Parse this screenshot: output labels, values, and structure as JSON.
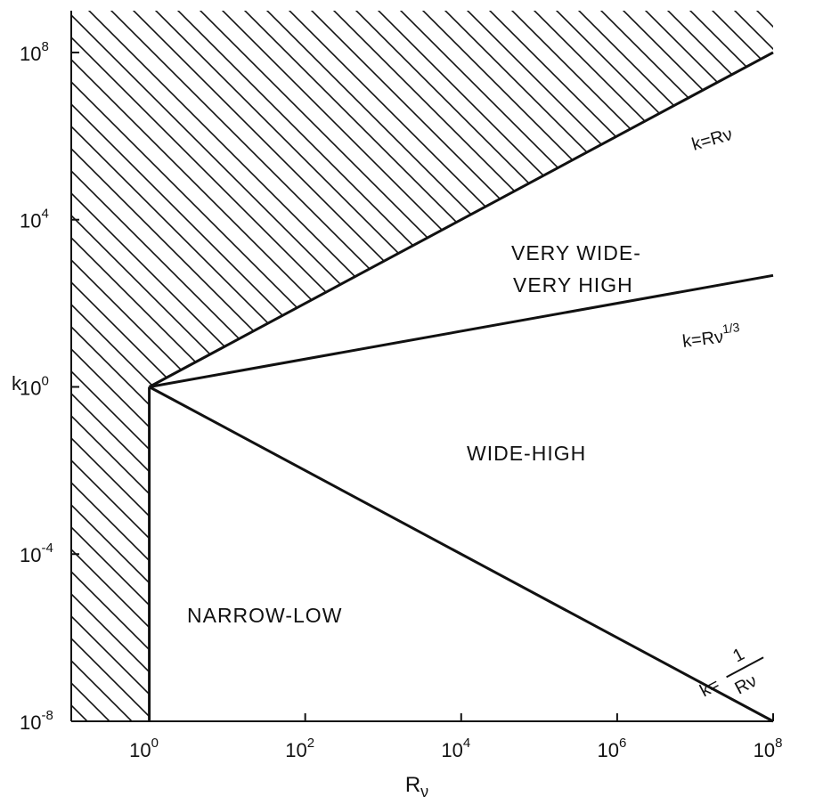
{
  "chart_data": {
    "type": "line",
    "title": "",
    "xlabel": "R",
    "xlabel_sub": "ν",
    "ylabel": "k",
    "x_scale": "log",
    "y_scale": "log",
    "xlim": [
      0.1,
      100000000
    ],
    "ylim": [
      1e-08,
      1000000000
    ],
    "grid": false,
    "x_ticks": [
      {
        "value": 1,
        "base": "10",
        "exp": "0"
      },
      {
        "value": 100,
        "base": "10",
        "exp": "2"
      },
      {
        "value": 10000,
        "base": "10",
        "exp": "4"
      },
      {
        "value": 1000000,
        "base": "10",
        "exp": "6"
      },
      {
        "value": 100000000,
        "base": "10",
        "exp": "8"
      }
    ],
    "y_ticks": [
      {
        "value": 100000000,
        "base": "10",
        "exp": "8"
      },
      {
        "value": 10000,
        "base": "10",
        "exp": "4"
      },
      {
        "value": 1,
        "base": "10",
        "exp": "0"
      },
      {
        "value": 0.0001,
        "base": "10",
        "exp": "-4"
      },
      {
        "value": 1e-08,
        "base": "10",
        "exp": "-8"
      }
    ],
    "series": [
      {
        "name": "k=R_ν",
        "points": [
          [
            1,
            1
          ],
          [
            100000000,
            100000000
          ]
        ]
      },
      {
        "name": "k=R_ν^(1/3)",
        "points": [
          [
            1,
            1
          ],
          [
            100000000,
            464.16
          ]
        ]
      },
      {
        "name": "k=1/R_ν",
        "points": [
          [
            1,
            1
          ],
          [
            100000000,
            1e-08
          ]
        ]
      },
      {
        "name": "",
        "points": [
          [
            1,
            1e-08
          ],
          [
            1,
            1
          ]
        ]
      }
    ],
    "curve_labels": [
      {
        "id": "k-eq-rv",
        "text": "k=Rν"
      },
      {
        "id": "k-eq-rv-cuberoot",
        "text": "k=Rν",
        "sup": "1/3"
      },
      {
        "id": "k-eq-inv-rv",
        "numerator_prefix": "k=",
        "numerator": "1",
        "denominator": "Rν"
      }
    ],
    "regions": [
      {
        "id": "very-wide-very-high",
        "lines": [
          "VERY WIDE-",
          "VERY HIGH"
        ]
      },
      {
        "id": "wide-high",
        "lines": [
          "WIDE-HIGH"
        ]
      },
      {
        "id": "narrow-low",
        "lines": [
          "NARROW-LOW"
        ]
      }
    ],
    "hatched_region": "excluded area above k=Rν and left of Rν=1"
  }
}
